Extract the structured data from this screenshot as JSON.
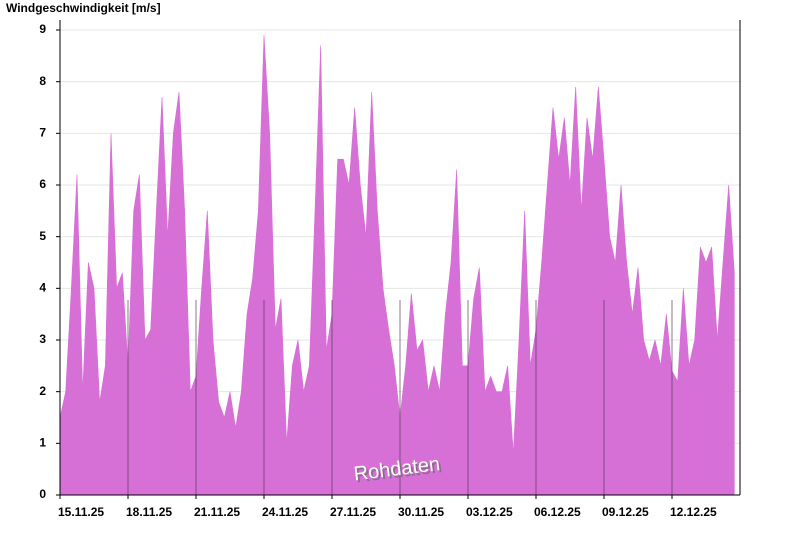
{
  "chart_data": {
    "type": "area",
    "title": "Windgeschwindigkeit [m/s]",
    "annotation": "Rohdaten",
    "color": "#d670d6",
    "grid": true,
    "xlim": [
      0,
      30
    ],
    "ylim": [
      0,
      9
    ],
    "yticks": [
      0,
      1,
      2,
      3,
      4,
      5,
      6,
      7,
      8,
      9
    ],
    "xticks": [
      {
        "value": 0,
        "label": "15.11.25"
      },
      {
        "value": 3,
        "label": "18.11.25"
      },
      {
        "value": 6,
        "label": "21.11.25"
      },
      {
        "value": 9,
        "label": "24.11.25"
      },
      {
        "value": 12,
        "label": "27.11.25"
      },
      {
        "value": 15,
        "label": "30.11.25"
      },
      {
        "value": 18,
        "label": "03.12.25"
      },
      {
        "value": 21,
        "label": "06.12.25"
      },
      {
        "value": 24,
        "label": "09.12.25"
      },
      {
        "value": 27,
        "label": "12.12.25"
      }
    ],
    "x": [
      0,
      0.25,
      0.5,
      0.75,
      1,
      1.25,
      1.5,
      1.75,
      2,
      2.25,
      2.5,
      2.75,
      3,
      3.25,
      3.5,
      3.75,
      4,
      4.25,
      4.5,
      4.75,
      5,
      5.25,
      5.5,
      5.75,
      6,
      6.25,
      6.5,
      6.75,
      7,
      7.25,
      7.5,
      7.75,
      8,
      8.25,
      8.5,
      8.75,
      9,
      9.25,
      9.5,
      9.75,
      10,
      10.25,
      10.5,
      10.75,
      11,
      11.25,
      11.5,
      11.75,
      12,
      12.25,
      12.5,
      12.75,
      13,
      13.25,
      13.5,
      13.75,
      14,
      14.25,
      14.5,
      14.75,
      15,
      15.25,
      15.5,
      15.75,
      16,
      16.25,
      16.5,
      16.75,
      17,
      17.25,
      17.5,
      17.75,
      18,
      18.25,
      18.5,
      18.75,
      19,
      19.25,
      19.5,
      19.75,
      20,
      20.25,
      20.5,
      20.75,
      21,
      21.25,
      21.5,
      21.75,
      22,
      22.25,
      22.5,
      22.75,
      23,
      23.25,
      23.5,
      23.75,
      24,
      24.25,
      24.5,
      24.75,
      25,
      25.25,
      25.5,
      25.75,
      26,
      26.25,
      26.5,
      26.75,
      27,
      27.25,
      27.5,
      27.75,
      28,
      28.25,
      28.5,
      28.75,
      29,
      29.25,
      29.5,
      29.75
    ],
    "values": [
      1.5,
      2.0,
      4.0,
      6.2,
      2.0,
      4.5,
      4.0,
      1.8,
      2.5,
      7.0,
      4.0,
      4.3,
      2.5,
      5.5,
      6.2,
      3.0,
      3.2,
      5.5,
      7.7,
      5.0,
      7.0,
      7.8,
      5.5,
      2.0,
      2.3,
      4.0,
      5.5,
      3.0,
      1.8,
      1.5,
      2.0,
      1.3,
      2.0,
      3.5,
      4.2,
      5.5,
      8.9,
      7.0,
      3.2,
      3.8,
      1.0,
      2.5,
      3.0,
      2.0,
      2.5,
      5.5,
      8.7,
      2.8,
      3.5,
      6.5,
      6.5,
      6.0,
      7.5,
      6.0,
      5.0,
      7.8,
      5.5,
      4.0,
      3.2,
      2.5,
      1.5,
      2.5,
      3.9,
      2.8,
      3.0,
      2.0,
      2.5,
      2.0,
      3.5,
      4.5,
      6.3,
      2.5,
      2.5,
      3.8,
      4.4,
      2.0,
      2.3,
      2.0,
      2.0,
      2.5,
      0.8,
      3.0,
      5.5,
      2.5,
      3.2,
      4.5,
      6.0,
      7.5,
      6.5,
      7.3,
      6.0,
      7.9,
      5.5,
      7.3,
      6.5,
      7.9,
      6.5,
      5.0,
      4.5,
      6.0,
      4.5,
      3.5,
      4.4,
      3.0,
      2.6,
      3.0,
      2.5,
      3.5,
      2.4,
      2.2,
      4.0,
      2.5,
      3.0,
      4.8,
      4.5,
      4.8,
      3.0,
      4.5,
      6.0,
      4.3
    ]
  }
}
